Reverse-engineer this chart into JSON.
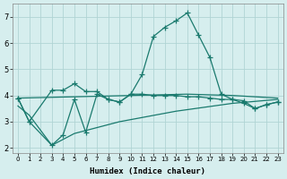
{
  "xlabel": "Humidex (Indice chaleur)",
  "background_color": "#d6eeee",
  "grid_color": "#b0d4d4",
  "line_color": "#1a7a6e",
  "xlim": [
    -0.5,
    23.5
  ],
  "ylim": [
    1.8,
    7.5
  ],
  "yticks": [
    2,
    3,
    4,
    5,
    6,
    7
  ],
  "xticks": [
    0,
    1,
    2,
    3,
    4,
    5,
    6,
    7,
    8,
    9,
    10,
    11,
    12,
    13,
    14,
    15,
    16,
    17,
    18,
    19,
    20,
    21,
    22,
    23
  ],
  "curve1_x": [
    0,
    1,
    3,
    4,
    5,
    6,
    7,
    8,
    9,
    10,
    11,
    12,
    13,
    14,
    15,
    16,
    17,
    18,
    19,
    20,
    21,
    22,
    23
  ],
  "curve1_y": [
    3.9,
    3.0,
    4.2,
    4.2,
    4.45,
    4.15,
    4.15,
    3.85,
    3.75,
    4.05,
    4.8,
    6.25,
    6.6,
    6.85,
    7.15,
    6.3,
    5.45,
    4.05,
    3.85,
    3.7,
    3.5,
    3.65,
    3.75
  ],
  "curve2_x": [
    0,
    1,
    3,
    4,
    5,
    6,
    7,
    8,
    9,
    10,
    11,
    12,
    13,
    14,
    15,
    16,
    17,
    18,
    19,
    20,
    21,
    22,
    23
  ],
  "curve2_y": [
    3.9,
    3.0,
    2.1,
    2.5,
    3.85,
    2.6,
    4.05,
    3.85,
    3.75,
    4.05,
    4.05,
    4.0,
    4.0,
    4.0,
    3.95,
    3.95,
    3.9,
    3.85,
    3.85,
    3.8,
    3.5,
    3.65,
    3.75
  ],
  "curve3_x": [
    0,
    1,
    3,
    5,
    9,
    14,
    19,
    23
  ],
  "curve3_y": [
    3.6,
    3.25,
    2.1,
    2.55,
    3.0,
    3.4,
    3.7,
    3.85
  ],
  "curve4_x": [
    0,
    5,
    10,
    15,
    19,
    23
  ],
  "curve4_y": [
    3.9,
    3.95,
    4.0,
    4.05,
    4.0,
    3.9
  ],
  "marker": "+"
}
